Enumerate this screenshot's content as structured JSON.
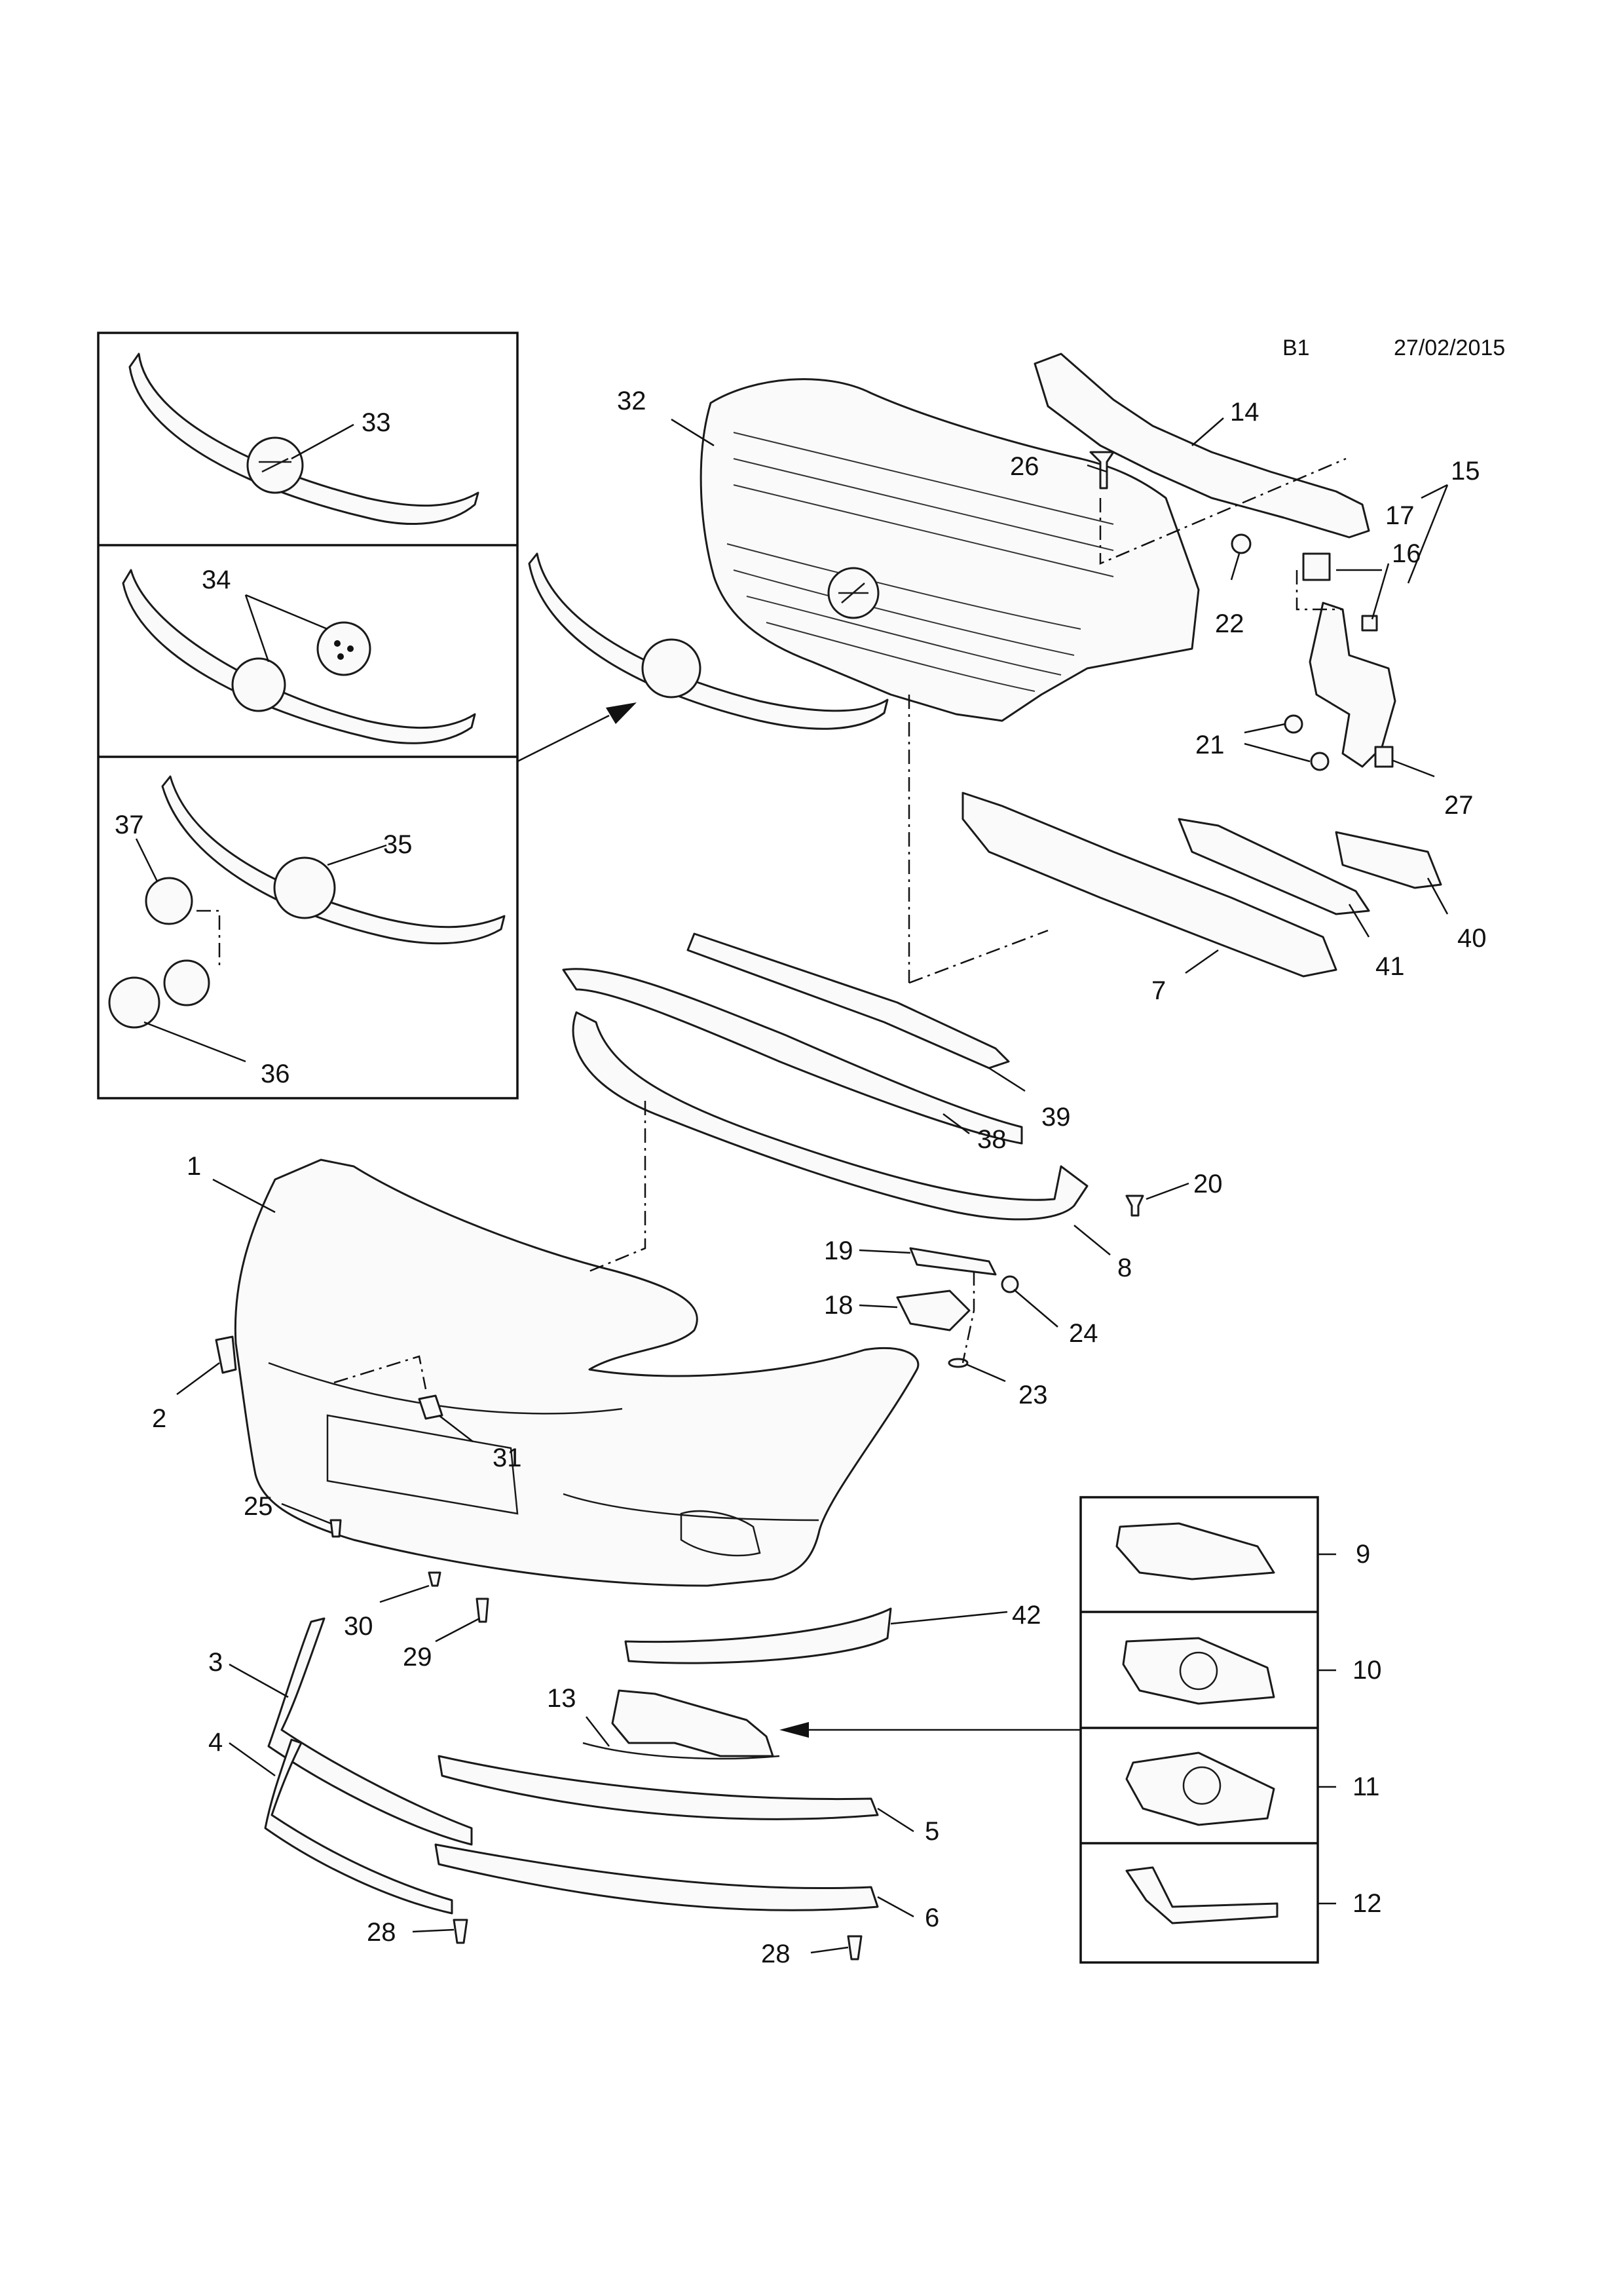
{
  "header": {
    "code": "B1",
    "date": "27/02/2015"
  },
  "callouts": [
    "1",
    "2",
    "3",
    "4",
    "5",
    "6",
    "7",
    "8",
    "9",
    "10",
    "11",
    "12",
    "13",
    "14",
    "15",
    "16",
    "17",
    "18",
    "19",
    "20",
    "21",
    "22",
    "23",
    "24",
    "25",
    "26",
    "27",
    "28",
    "28",
    "29",
    "30",
    "31",
    "32",
    "33",
    "34",
    "35",
    "36",
    "37",
    "38",
    "39",
    "40",
    "41",
    "42"
  ],
  "colors": {
    "line": "#1a1a1a",
    "background": "#ffffff"
  }
}
